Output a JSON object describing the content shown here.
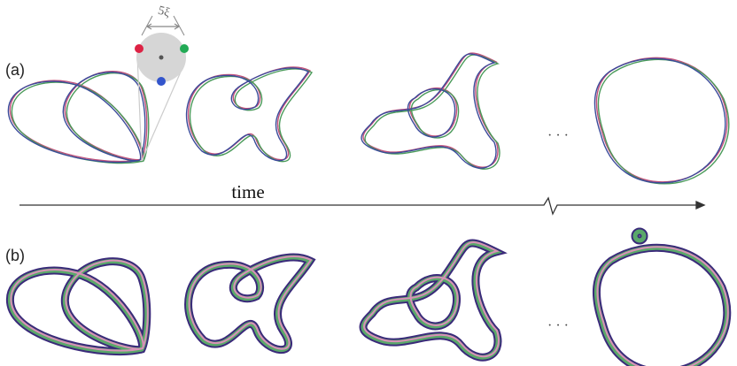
{
  "panels": [
    {
      "label": "(a)"
    },
    {
      "label": "(b)"
    }
  ],
  "axis": {
    "label": "time"
  },
  "inset": {
    "label": "5ξ"
  },
  "ellipsis": [
    "· · ·",
    "· · ·"
  ]
}
